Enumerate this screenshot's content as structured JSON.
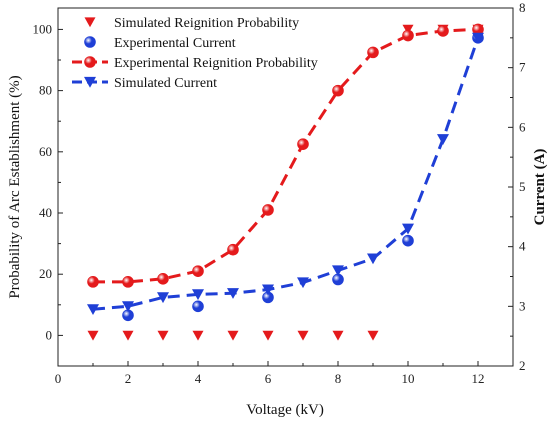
{
  "chart_data": {
    "type": "line",
    "xlabel": "Voltage (kV)",
    "ylabel": "Probability of Arc Establishment (%)",
    "ylabel_right": "Current (A)",
    "xlim": [
      0,
      13
    ],
    "ylim": [
      -10,
      107
    ],
    "ylim_right": [
      2,
      8
    ],
    "x_ticks": [
      0,
      2,
      4,
      6,
      8,
      10,
      12
    ],
    "y_ticks": [
      0,
      20,
      40,
      60,
      80,
      100
    ],
    "y_ticks_right": [
      2,
      3,
      4,
      5,
      6,
      7,
      8
    ],
    "legend_position": "top-left",
    "series": [
      {
        "name": "Simulated Reignition Probability",
        "axis": "left",
        "style": "markers",
        "marker": "triangle-down",
        "color": "#e41a1c",
        "x": [
          1,
          2,
          3,
          4,
          5,
          6,
          7,
          8,
          9,
          10,
          11,
          12
        ],
        "y": [
          0,
          0,
          0,
          0,
          0,
          0,
          0,
          0,
          0,
          100,
          100,
          100
        ]
      },
      {
        "name": "Experimental Current",
        "axis": "right",
        "style": "markers",
        "marker": "circle",
        "color": "#1f3fd6",
        "x": [
          2,
          4,
          6,
          8,
          10,
          12
        ],
        "y": [
          2.85,
          3.0,
          3.15,
          3.45,
          4.1,
          7.5
        ]
      },
      {
        "name": "Experimental Reignition Probability",
        "axis": "left",
        "style": "dashed-line-markers",
        "marker": "circle",
        "color": "#e41a1c",
        "x": [
          1,
          2,
          3,
          4,
          5,
          6,
          7,
          8,
          9,
          10,
          11,
          12
        ],
        "y": [
          17.5,
          17.5,
          18.5,
          21,
          28,
          41,
          62.5,
          80,
          92.5,
          98,
          99.5,
          100
        ]
      },
      {
        "name": "Simulated Current",
        "axis": "right",
        "style": "dashed-line-markers",
        "marker": "triangle-down",
        "color": "#1f3fd6",
        "x": [
          1,
          2,
          3,
          4,
          5,
          6,
          7,
          8,
          9,
          10,
          11,
          12
        ],
        "y": [
          2.95,
          3.0,
          3.15,
          3.2,
          3.22,
          3.28,
          3.4,
          3.6,
          3.8,
          4.3,
          5.8,
          7.5
        ]
      }
    ]
  }
}
